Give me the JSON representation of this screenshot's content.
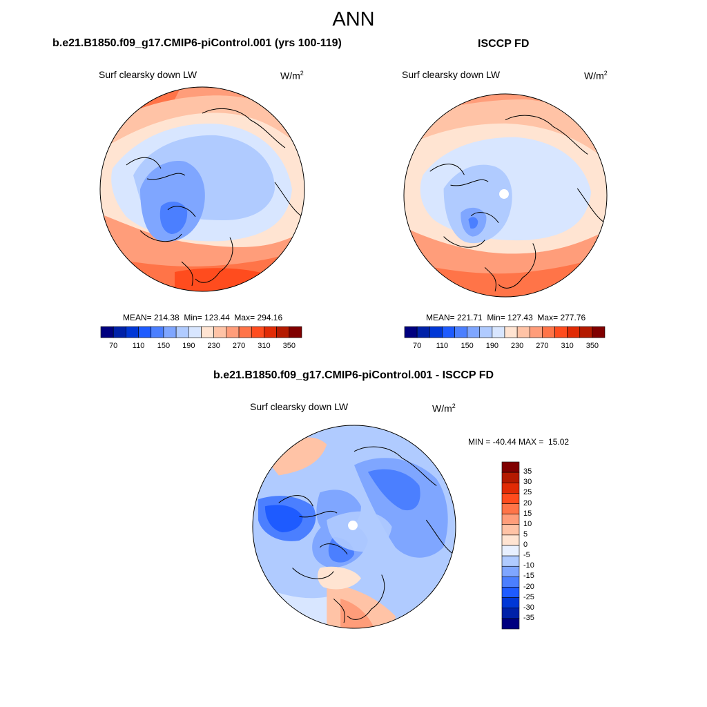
{
  "title": "ANN",
  "panels": [
    {
      "title": "b.e21.B1850.f09_g17.CMIP6-piControl.001 (yrs 100-119)",
      "variable": "Surf clearsky down LW",
      "units_base": "W/m",
      "units_exp": "2",
      "stats": "MEAN= 214.38  Min= 123.44  Max= 294.16",
      "colorbar": {
        "colors": [
          "#00007f",
          "#0021a8",
          "#0037d6",
          "#1e5bff",
          "#4b7fff",
          "#7fa6ff",
          "#b0cbff",
          "#d8e6ff",
          "#ffe4d2",
          "#ffc3a6",
          "#ff9d7a",
          "#ff7448",
          "#ff4c1e",
          "#e12b05",
          "#b41a00",
          "#800000"
        ],
        "labels": [
          "70",
          "110",
          "150",
          "190",
          "230",
          "270",
          "310",
          "350"
        ]
      }
    },
    {
      "title": "ISCCP FD",
      "variable": "Surf clearsky down LW",
      "units_base": "W/m",
      "units_exp": "2",
      "stats": "MEAN= 221.71  Min= 127.43  Max= 277.76",
      "colorbar": {
        "colors": [
          "#00007f",
          "#0021a8",
          "#0037d6",
          "#1e5bff",
          "#4b7fff",
          "#7fa6ff",
          "#b0cbff",
          "#d8e6ff",
          "#ffe4d2",
          "#ffc3a6",
          "#ff9d7a",
          "#ff7448",
          "#ff4c1e",
          "#e12b05",
          "#b41a00",
          "#800000"
        ],
        "labels": [
          "70",
          "110",
          "150",
          "190",
          "230",
          "270",
          "310",
          "350"
        ]
      }
    },
    {
      "title": "b.e21.B1850.f09_g17.CMIP6-piControl.001 - ISCCP FD",
      "variable": "Surf clearsky down LW",
      "units_base": "W/m",
      "units_exp": "2",
      "stats": "MIN = -40.44 MAX =  15.02",
      "colorbar": {
        "colors": [
          "#800000",
          "#b41a00",
          "#e12b05",
          "#ff4c1e",
          "#ff7448",
          "#ff9d7a",
          "#ffc3a6",
          "#ffe4d2",
          "#e8f0ff",
          "#b0cbff",
          "#7fa6ff",
          "#4b7fff",
          "#1e5bff",
          "#0037d6",
          "#0021a8",
          "#00007f"
        ],
        "labels": [
          "35",
          "30",
          "25",
          "20",
          "15",
          "10",
          "5",
          "0",
          "-5",
          "-10",
          "-15",
          "-20",
          "-25",
          "-30",
          "-35"
        ]
      }
    }
  ]
}
